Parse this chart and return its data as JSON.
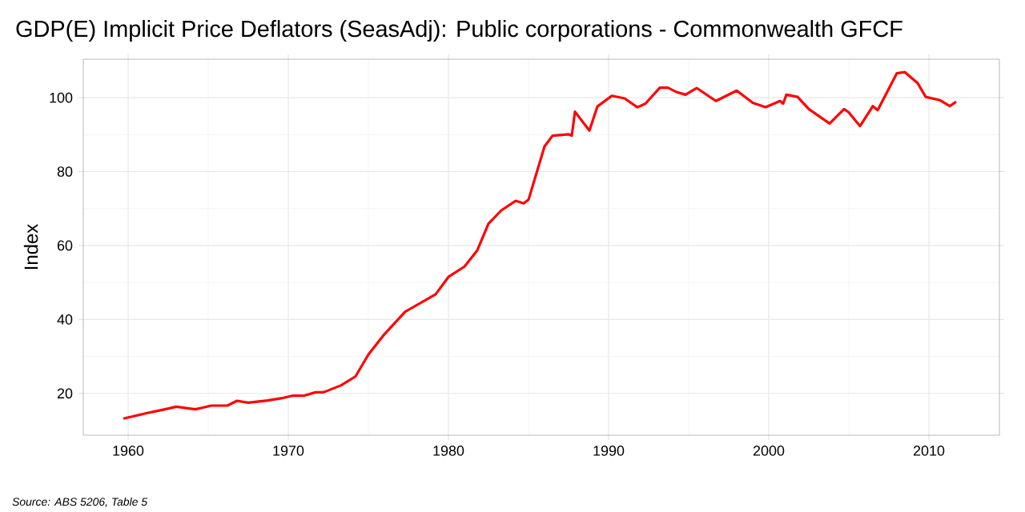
{
  "chart_data": {
    "type": "line",
    "title": "GDP(E) Implicit Price Deflators (SeasAdj): Public corporations - Commonwealth GFCF",
    "ylabel": "Index",
    "annotations": [
      "Source: ABS 5206, Table 5"
    ],
    "xlim": [
      1957.2,
      2014.4
    ],
    "ylim": [
      8.7,
      110.4
    ],
    "xticks": [
      1960,
      1970,
      1980,
      1990,
      2000,
      2010
    ],
    "yticks": [
      20,
      40,
      60,
      80,
      100
    ],
    "grid": true,
    "marker": "none",
    "line_style": "solid",
    "series": [
      {
        "color": "#ff0000",
        "x": [
          1959.7,
          1961.2,
          1962.3,
          1963,
          1964.2,
          1965.2,
          1966.2,
          1966.8,
          1967.5,
          1968.7,
          1969.7,
          1970.3,
          1971,
          1971.7,
          1972.2,
          1973.3,
          1974.2,
          1975,
          1976,
          1977.3,
          1979.2,
          1980,
          1981,
          1981.8,
          1982.5,
          1983.3,
          1984.2,
          1984.7,
          1985,
          1986,
          1986.5,
          1987.5,
          1987.7,
          1987.9,
          1988.8,
          1989.3,
          1990.2,
          1991,
          1991.8,
          1992.3,
          1993.2,
          1993.7,
          1994.2,
          1994.8,
          1995.5,
          1996.7,
          1998,
          1999,
          1999.8,
          2000.7,
          2000.9,
          2001.1,
          2001.8,
          2002.5,
          2003.8,
          2004.7,
          2005,
          2005.7,
          2006.5,
          2006.8,
          2008,
          2008.5,
          2009.3,
          2009.8,
          2010.7,
          2011.3,
          2011.7
        ],
        "values": [
          13.2,
          14.7,
          15.7,
          16.4,
          15.7,
          16.7,
          16.7,
          18.0,
          17.5,
          18.1,
          18.8,
          19.4,
          19.4,
          20.3,
          20.3,
          22.2,
          24.6,
          30.5,
          36.0,
          42.1,
          46.8,
          51.5,
          54.3,
          58.7,
          65.9,
          69.5,
          72.1,
          71.4,
          72.4,
          86.8,
          89.7,
          90.1,
          89.7,
          96.2,
          91.1,
          97.6,
          100.5,
          99.8,
          97.4,
          98.4,
          102.7,
          102.7,
          101.6,
          100.8,
          102.6,
          99.1,
          101.9,
          98.6,
          97.4,
          99.1,
          98.4,
          100.8,
          100.2,
          96.9,
          93.0,
          96.9,
          96.0,
          92.3,
          97.7,
          96.6,
          106.6,
          106.9,
          103.9,
          100.2,
          99.3,
          97.7,
          98.9
        ]
      }
    ]
  }
}
